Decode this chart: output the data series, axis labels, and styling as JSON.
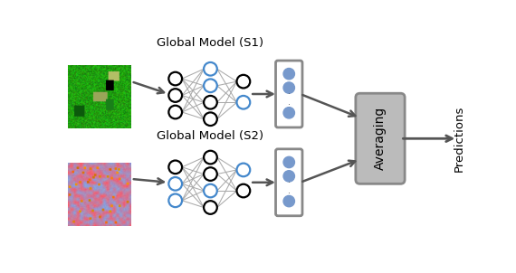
{
  "label_s1": "Global Model (S1)",
  "label_s2": "Global Model (S2)",
  "label_averaging": "Averaging",
  "label_predictions": "Predictions",
  "bg_color": "#ffffff",
  "blue_edge": "#4488CC",
  "black_edge": "#111111",
  "gray_line": "#aaaaaa",
  "arrow_color": "#555555",
  "dot_fill": "#7799CC",
  "box_edge": "#888888",
  "avg_fill": "#bbbbbb",
  "avg_edge": "#888888",
  "s1_in_colors": [
    "black",
    "black",
    "black"
  ],
  "s1_hid_colors": [
    "#4488CC",
    "#4488CC",
    "black",
    "black"
  ],
  "s1_out_colors": [
    "black",
    "#4488CC"
  ],
  "s2_in_colors": [
    "black",
    "#4488CC",
    "#4488CC"
  ],
  "s2_hid_colors": [
    "black",
    "black",
    "#4488CC",
    "black"
  ],
  "s2_out_colors": [
    "#4488CC",
    "black"
  ]
}
